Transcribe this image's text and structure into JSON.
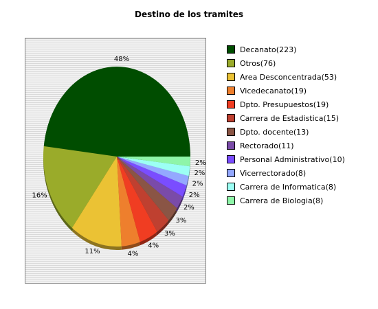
{
  "chart_data": {
    "type": "pie",
    "title": "Destino de los tramites",
    "legend_placement": "right",
    "slices": [
      {
        "label": "Decanato(223)",
        "value": 223,
        "percent_label": "48%",
        "color": "#004d00"
      },
      {
        "label": "Otros(76)",
        "value": 76,
        "percent_label": "16%",
        "color": "#9aab2a"
      },
      {
        "label": "Area Desconcentrada(53)",
        "value": 53,
        "percent_label": "11%",
        "color": "#ebc234"
      },
      {
        "label": "Vicedecanato(19)",
        "value": 19,
        "percent_label": "4%",
        "color": "#ee7f2d"
      },
      {
        "label": "Dpto. Presupuestos(19)",
        "value": 19,
        "percent_label": "4%",
        "color": "#f03d22"
      },
      {
        "label": "Carrera de Estadistica(15)",
        "value": 15,
        "percent_label": "3%",
        "color": "#bf4030"
      },
      {
        "label": "Dpto. docente(13)",
        "value": 13,
        "percent_label": "3%",
        "color": "#8a5545"
      },
      {
        "label": "Rectorado(11)",
        "value": 11,
        "percent_label": "2%",
        "color": "#7a4ba8"
      },
      {
        "label": "Personal Administrativo(10)",
        "value": 10,
        "percent_label": "2%",
        "color": "#7a4dff"
      },
      {
        "label": "Vicerrectorado(8)",
        "value": 8,
        "percent_label": "2%",
        "color": "#94a8ff"
      },
      {
        "label": "Carrera de Informatica(8)",
        "value": 8,
        "percent_label": "2%",
        "color": "#9cfff4"
      },
      {
        "label": "Carrera de Biologia(8)",
        "value": 8,
        "percent_label": "2%",
        "color": "#8ef5a8"
      }
    ]
  }
}
